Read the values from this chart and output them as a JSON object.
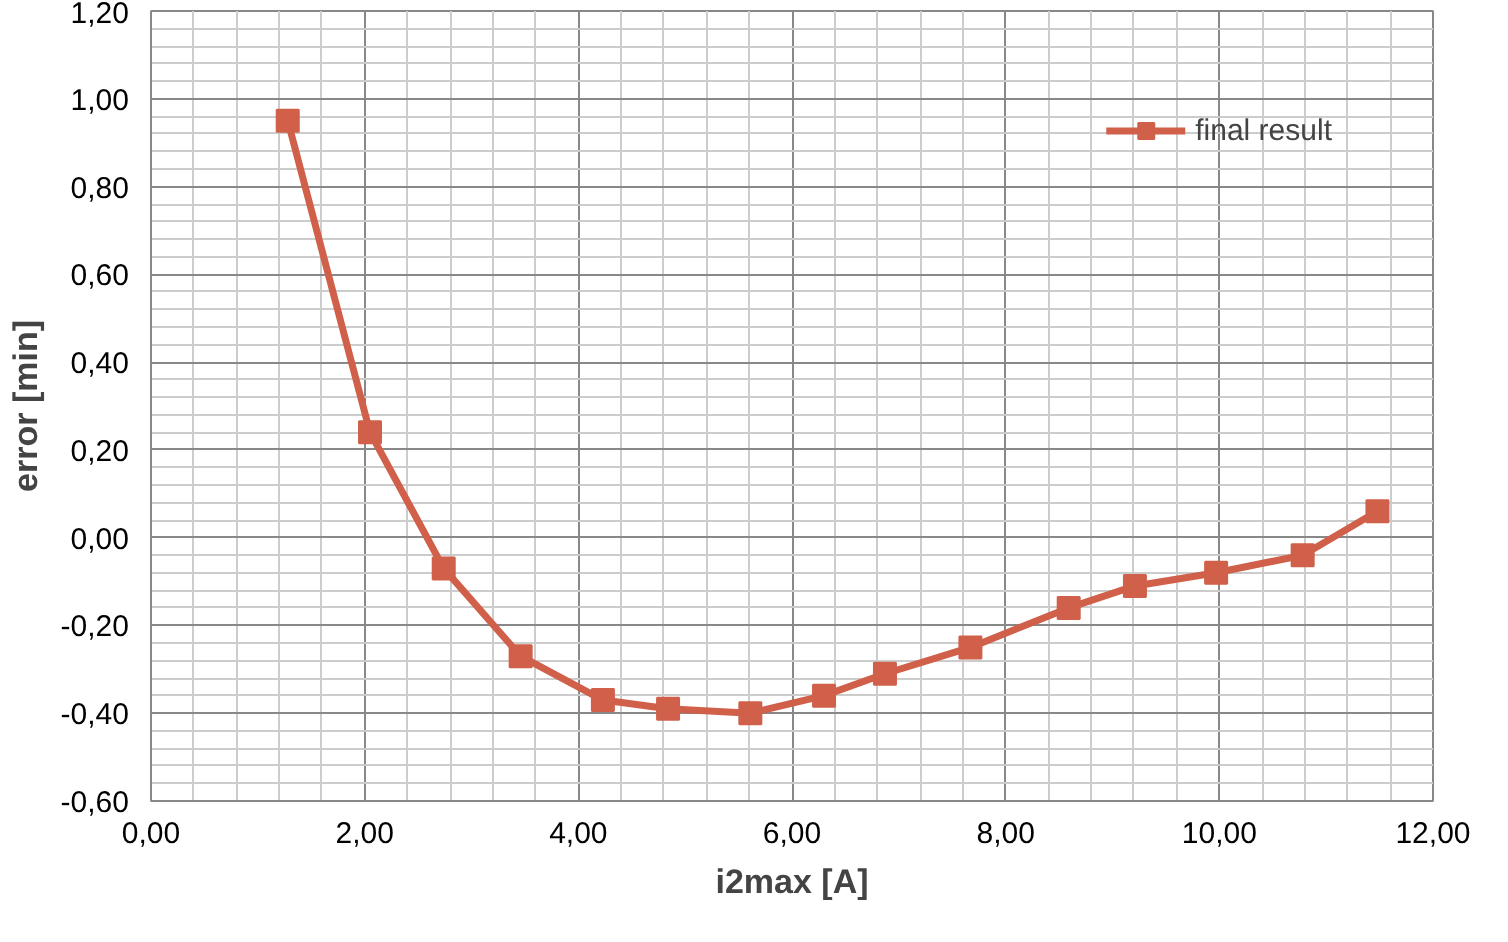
{
  "chart_data": {
    "type": "line",
    "xlabel": "i2max [A]",
    "ylabel": "error [min]",
    "x": [
      1.28,
      2.05,
      2.74,
      3.46,
      4.23,
      4.84,
      5.61,
      6.3,
      6.87,
      7.67,
      8.59,
      9.21,
      9.97,
      10.78,
      11.48
    ],
    "series": [
      {
        "name": "final result",
        "color": "#d0604a",
        "values": [
          0.95,
          0.24,
          -0.07,
          -0.27,
          -0.37,
          -0.39,
          -0.4,
          -0.36,
          -0.31,
          -0.25,
          -0.16,
          -0.11,
          -0.08,
          -0.04,
          0.06
        ]
      }
    ],
    "xlim": [
      0,
      12
    ],
    "xticks": [
      {
        "value": 0,
        "label": "0,00"
      },
      {
        "value": 2,
        "label": "2,00"
      },
      {
        "value": 4,
        "label": "4,00"
      },
      {
        "value": 6,
        "label": "6,00"
      },
      {
        "value": 8,
        "label": "8,00"
      },
      {
        "value": 10,
        "label": "10,00"
      },
      {
        "value": 12,
        "label": "12,00"
      }
    ],
    "ylim": [
      -0.6,
      1.2
    ],
    "yticks": [
      {
        "value": -0.6,
        "label": "-0,60"
      },
      {
        "value": -0.4,
        "label": "-0,40"
      },
      {
        "value": -0.2,
        "label": "-0,20"
      },
      {
        "value": 0,
        "label": "0,00"
      },
      {
        "value": 0.2,
        "label": "0,20"
      },
      {
        "value": 0.4,
        "label": "0,40"
      },
      {
        "value": 0.6,
        "label": "0,60"
      },
      {
        "value": 0.8,
        "label": "0,80"
      },
      {
        "value": 1.0,
        "label": "1,00"
      },
      {
        "value": 1.2,
        "label": "1,20"
      }
    ],
    "grid": true,
    "legend": "top right",
    "marker": "square",
    "line_style": "solid"
  }
}
